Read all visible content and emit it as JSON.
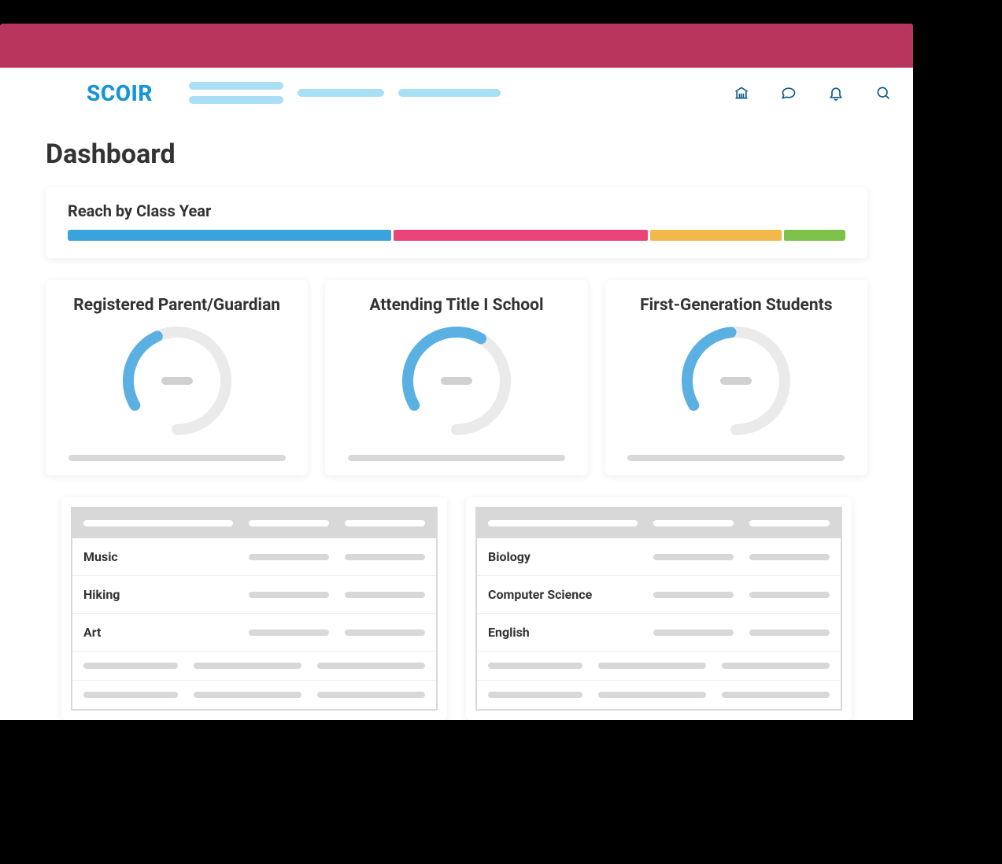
{
  "brand": {
    "name": "SCOIR",
    "color": "#1795d4"
  },
  "banner_color": "#b8355e",
  "nav_skeleton_color": "#a9dff4",
  "icon_color": "#0d5b8c",
  "page_title": "Dashboard",
  "reach": {
    "title": "Reach by Class Year",
    "segments": [
      {
        "color": "#3aa3dd",
        "pct": 42
      },
      {
        "color": "#e9437a",
        "pct": 33
      },
      {
        "color": "#f2b84b",
        "pct": 17
      },
      {
        "color": "#7cc24a",
        "pct": 8
      }
    ]
  },
  "gauges": [
    {
      "title": "Registered Parent/Guardian",
      "pct": 32,
      "color": "#5ab0e2",
      "track": "#eaeaea"
    },
    {
      "title": "Attending Title I School",
      "pct": 50,
      "color": "#5ab0e2",
      "track": "#eaeaea"
    },
    {
      "title": "First-Generation Students",
      "pct": 38,
      "color": "#5ab0e2",
      "track": "#eaeaea"
    }
  ],
  "tables": {
    "left": {
      "rows": [
        "Music",
        "Hiking",
        "Art",
        "",
        ""
      ]
    },
    "right": {
      "rows": [
        "Biology",
        "Computer Science",
        "English",
        "",
        ""
      ]
    }
  },
  "skeleton_color": "#d8d8d8"
}
